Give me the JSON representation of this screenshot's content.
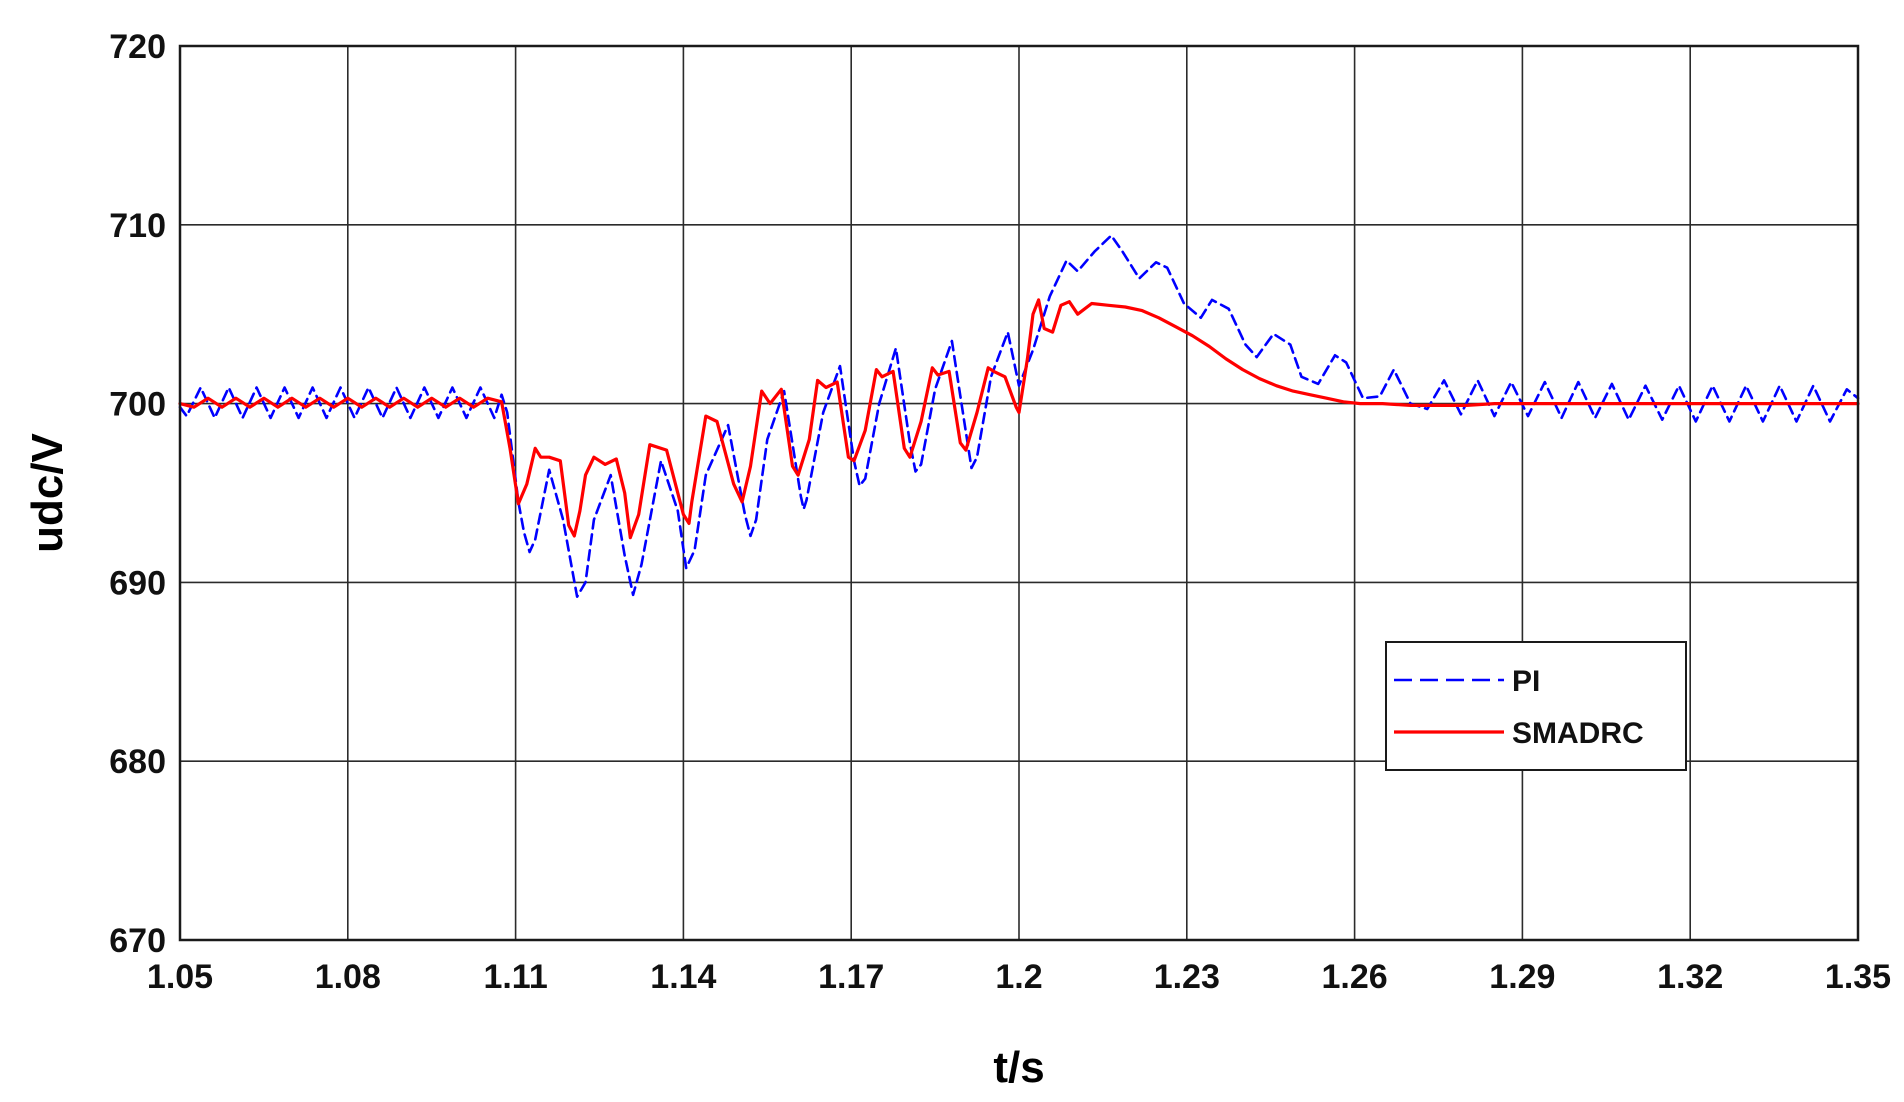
{
  "chart_data": {
    "type": "line",
    "xlabel": "t/s",
    "ylabel": "udc/V",
    "xlim": [
      1.05,
      1.35
    ],
    "ylim": [
      670,
      720
    ],
    "x_ticks": [
      1.05,
      1.08,
      1.11,
      1.14,
      1.17,
      1.2,
      1.23,
      1.26,
      1.29,
      1.32,
      1.35
    ],
    "x_tick_labels": [
      "1.05",
      "1.08",
      "1.11",
      "1.14",
      "1.17",
      "1.2",
      "1.23",
      "1.26",
      "1.29",
      "1.32",
      "1.35"
    ],
    "y_ticks": [
      670,
      680,
      690,
      700,
      710,
      720
    ],
    "y_tick_labels": [
      "670",
      "680",
      "690",
      "700",
      "710",
      "720"
    ],
    "grid": true,
    "legend_position": "lower-right",
    "series": [
      {
        "name": "PI",
        "color": "#0000ff",
        "style": "dashed",
        "x": [
          1.05,
          1.0512,
          1.0537,
          1.0562,
          1.0587,
          1.0612,
          1.0637,
          1.0662,
          1.0687,
          1.0712,
          1.0737,
          1.0762,
          1.0787,
          1.0812,
          1.0837,
          1.0862,
          1.0887,
          1.0912,
          1.0937,
          1.0962,
          1.0987,
          1.1012,
          1.1037,
          1.1062,
          1.1075,
          1.1085,
          1.1095,
          1.1105,
          1.1115,
          1.1125,
          1.1135,
          1.116,
          1.1185,
          1.121,
          1.1225,
          1.124,
          1.127,
          1.1295,
          1.131,
          1.1325,
          1.136,
          1.139,
          1.1405,
          1.142,
          1.144,
          1.148,
          1.151,
          1.152,
          1.153,
          1.155,
          1.158,
          1.161,
          1.1615,
          1.162,
          1.165,
          1.168,
          1.1705,
          1.1715,
          1.1725,
          1.175,
          1.178,
          1.1805,
          1.1815,
          1.1825,
          1.185,
          1.188,
          1.1905,
          1.1915,
          1.1925,
          1.195,
          1.198,
          1.2,
          1.2025,
          1.2055,
          1.2085,
          1.2105,
          1.2135,
          1.2165,
          1.2185,
          1.2215,
          1.2245,
          1.2265,
          1.2295,
          1.2325,
          1.2345,
          1.2375,
          1.2405,
          1.2425,
          1.2455,
          1.2485,
          1.2505,
          1.2535,
          1.2565,
          1.2585,
          1.2615,
          1.2645,
          1.267,
          1.27,
          1.273,
          1.276,
          1.279,
          1.282,
          1.285,
          1.288,
          1.291,
          1.294,
          1.297,
          1.3,
          1.303,
          1.306,
          1.309,
          1.312,
          1.315,
          1.318,
          1.321,
          1.324,
          1.327,
          1.33,
          1.333,
          1.336,
          1.339,
          1.342,
          1.345,
          1.348,
          1.35
        ],
        "y": [
          699.8,
          699.3,
          700.9,
          699.2,
          700.9,
          699.2,
          700.9,
          699.2,
          700.9,
          699.2,
          700.9,
          699.2,
          700.9,
          699.2,
          700.9,
          699.2,
          700.9,
          699.2,
          700.9,
          699.2,
          700.9,
          699.2,
          700.9,
          699.2,
          700.5,
          699.5,
          697.0,
          694.5,
          692.8,
          691.7,
          692.4,
          696.3,
          693.5,
          689.2,
          690.0,
          693.5,
          696.0,
          691.5,
          689.3,
          691.0,
          696.8,
          694.0,
          690.8,
          691.8,
          696.0,
          698.8,
          693.8,
          692.6,
          693.5,
          698.0,
          700.7,
          694.8,
          694.1,
          694.6,
          699.5,
          702.1,
          696.8,
          695.4,
          695.8,
          700.0,
          703.1,
          697.8,
          696.2,
          696.6,
          700.8,
          703.5,
          698.4,
          696.4,
          697.0,
          701.5,
          704.0,
          701.0,
          703.0,
          706.0,
          708.0,
          707.4,
          708.5,
          709.4,
          708.5,
          707.0,
          707.9,
          707.6,
          705.6,
          704.8,
          705.8,
          705.3,
          703.3,
          702.6,
          703.9,
          703.3,
          701.5,
          701.1,
          702.7,
          702.3,
          700.3,
          700.4,
          701.9,
          700.0,
          699.7,
          701.3,
          699.4,
          701.3,
          699.3,
          701.2,
          699.3,
          701.2,
          699.2,
          701.2,
          699.2,
          701.1,
          699.1,
          701.0,
          699.1,
          701.0,
          699.0,
          701.0,
          699.0,
          701.0,
          699.0,
          701.0,
          699.0,
          701.0,
          699.0,
          700.8,
          700.3
        ]
      },
      {
        "name": "SMADRC",
        "color": "#ff0000",
        "style": "solid",
        "x": [
          1.05,
          1.0525,
          1.055,
          1.0575,
          1.06,
          1.0625,
          1.065,
          1.0675,
          1.07,
          1.0725,
          1.075,
          1.0775,
          1.08,
          1.0825,
          1.085,
          1.0875,
          1.09,
          1.0925,
          1.095,
          1.0975,
          1.1,
          1.1025,
          1.105,
          1.1075,
          1.109,
          1.1105,
          1.112,
          1.1135,
          1.1145,
          1.116,
          1.118,
          1.1195,
          1.1205,
          1.1215,
          1.1225,
          1.124,
          1.126,
          1.128,
          1.1295,
          1.1305,
          1.132,
          1.134,
          1.137,
          1.14,
          1.141,
          1.1415,
          1.144,
          1.146,
          1.149,
          1.1505,
          1.152,
          1.154,
          1.1555,
          1.1575,
          1.1595,
          1.1605,
          1.1625,
          1.164,
          1.1655,
          1.1675,
          1.1695,
          1.1705,
          1.1725,
          1.1745,
          1.1755,
          1.1775,
          1.1795,
          1.1805,
          1.1825,
          1.1845,
          1.1855,
          1.1875,
          1.1895,
          1.1905,
          1.1925,
          1.1945,
          1.1955,
          1.1975,
          1.1995,
          1.2,
          1.2015,
          1.2025,
          1.2035,
          1.2045,
          1.206,
          1.2075,
          1.209,
          1.2105,
          1.213,
          1.216,
          1.219,
          1.222,
          1.225,
          1.228,
          1.231,
          1.234,
          1.237,
          1.24,
          1.243,
          1.246,
          1.249,
          1.252,
          1.255,
          1.258,
          1.261,
          1.265,
          1.27,
          1.275,
          1.28,
          1.285,
          1.29,
          1.295,
          1.3,
          1.305,
          1.31,
          1.315,
          1.32,
          1.325,
          1.33,
          1.335,
          1.34,
          1.345,
          1.35
        ],
        "y": [
          700.0,
          699.8,
          700.3,
          699.8,
          700.3,
          699.8,
          700.3,
          699.8,
          700.3,
          699.8,
          700.3,
          699.8,
          700.3,
          699.8,
          700.3,
          699.8,
          700.3,
          699.8,
          700.3,
          699.8,
          700.3,
          699.8,
          700.3,
          700.1,
          697.5,
          694.4,
          695.5,
          697.5,
          697.0,
          697.0,
          696.8,
          693.2,
          692.6,
          694.0,
          696.0,
          697.0,
          696.6,
          696.9,
          695.0,
          692.5,
          693.8,
          697.7,
          697.4,
          693.8,
          693.3,
          694.5,
          699.3,
          699.0,
          695.5,
          694.5,
          696.5,
          700.7,
          700.0,
          700.8,
          696.5,
          696.0,
          698.0,
          701.3,
          700.9,
          701.2,
          697.0,
          696.8,
          698.5,
          701.9,
          701.5,
          701.8,
          697.5,
          697.0,
          699.0,
          702.0,
          701.6,
          701.8,
          697.8,
          697.4,
          699.5,
          702.0,
          701.8,
          701.5,
          699.8,
          699.5,
          702.5,
          705.0,
          705.8,
          704.2,
          704.0,
          705.5,
          705.7,
          705.0,
          705.6,
          705.5,
          705.4,
          705.2,
          704.8,
          704.3,
          703.8,
          703.2,
          702.5,
          701.9,
          701.4,
          701.0,
          700.7,
          700.5,
          700.3,
          700.1,
          700.0,
          700.0,
          699.9,
          699.9,
          699.9,
          700.0,
          700.0,
          700.0,
          700.0,
          700.0,
          700.0,
          700.0,
          700.0,
          700.0,
          700.0,
          700.0,
          700.0,
          700.0,
          700.0
        ]
      }
    ]
  },
  "colors": {
    "grid": "#2b2b2b",
    "axes": "#1a1a1a",
    "background": "#ffffff"
  }
}
